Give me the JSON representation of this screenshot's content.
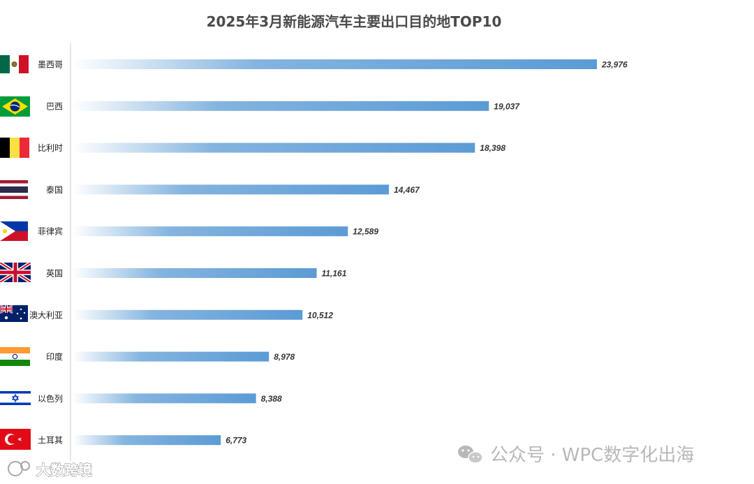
{
  "chart_data": {
    "type": "bar",
    "orientation": "horizontal",
    "title": "2025年3月新能源汽车主要出口目的地TOP10",
    "categories": [
      "墨西哥",
      "巴西",
      "比利时",
      "泰国",
      "菲律宾",
      "英国",
      "澳大利亚",
      "印度",
      "以色列",
      "土耳其"
    ],
    "values": [
      23976,
      19037,
      18398,
      14467,
      12589,
      11161,
      10512,
      8978,
      8388,
      6773
    ],
    "value_labels": [
      "23,976",
      "19,037",
      "18,398",
      "14,467",
      "12,589",
      "11,161",
      "10,512",
      "8,978",
      "8,388",
      "6,773"
    ],
    "flags": [
      "mexico-flag",
      "brazil-flag",
      "belgium-flag",
      "thailand-flag",
      "philippines-flag",
      "uk-flag",
      "australia-flag",
      "india-flag",
      "israel-flag",
      "turkey-flag"
    ],
    "xlim": [
      0,
      25000
    ],
    "xlabel": "",
    "ylabel": "",
    "grid": false,
    "bar_color": "#5b9bd5"
  },
  "watermarks": {
    "right_text": "公众号 · WPC数字化出海",
    "left_text": "大数跨境"
  }
}
